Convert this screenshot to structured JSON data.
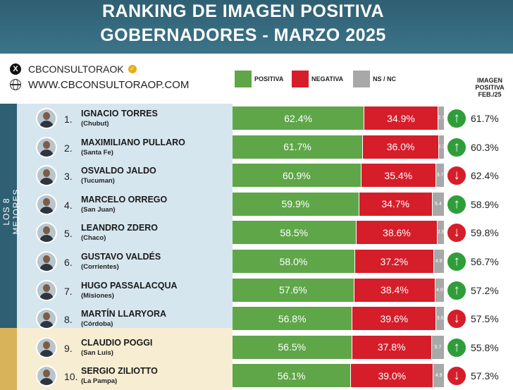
{
  "title": {
    "line1": "RANKING DE IMAGEN POSITIVA",
    "line2": "GOBERNADORES - MARZO 2025"
  },
  "brand": {
    "handle": "CBCONSULTORAOK",
    "website": "WWW.CBCONSULTORAOP.COM"
  },
  "legend": {
    "positive": "POSITIVA",
    "negative": "NEGATIVA",
    "nsnc": "NS / NC"
  },
  "feb_header": [
    "IMAGEN",
    "POSITIVA",
    "FEB./25"
  ],
  "side_label": "LOS 8 MEJORES",
  "colors": {
    "positive": "#5fa649",
    "negative": "#d51e2a",
    "nsnc": "#a8a8a8",
    "arrow_up": "#2f9e3a",
    "arrow_down": "#d51e2a",
    "header": "#2f5f72",
    "top_band": "#d6e6ef",
    "bottom_band": "#f6edd2"
  },
  "chart_data": {
    "type": "bar",
    "stacked": true,
    "orientation": "horizontal",
    "rows": [
      {
        "rank": "1.",
        "name": "IGNACIO TORRES",
        "province": "(Chubut)",
        "positiva": 62.4,
        "negativa": 34.9,
        "nsnc": 2.7,
        "trend": "up",
        "feb25": 61.7
      },
      {
        "rank": "2.",
        "name": "MAXIMILIANO PULLARO",
        "province": "(Santa Fe)",
        "positiva": 61.7,
        "negativa": 36.0,
        "nsnc": 2.3,
        "trend": "up",
        "feb25": 60.3
      },
      {
        "rank": "3.",
        "name": "OSVALDO JALDO",
        "province": "(Tucuman)",
        "positiva": 60.9,
        "negativa": 35.4,
        "nsnc": 3.7,
        "trend": "down",
        "feb25": 62.4
      },
      {
        "rank": "4.",
        "name": "MARCELO ORREGO",
        "province": "(San Juan)",
        "positiva": 59.9,
        "negativa": 34.7,
        "nsnc": 5.4,
        "trend": "up",
        "feb25": 58.9
      },
      {
        "rank": "5.",
        "name": "LEANDRO ZDERO",
        "province": "(Chaco)",
        "positiva": 58.5,
        "negativa": 38.6,
        "nsnc": 2.9,
        "trend": "down",
        "feb25": 59.8
      },
      {
        "rank": "6.",
        "name": "GUSTAVO VALDÉS",
        "province": "(Corrientes)",
        "positiva": 58.0,
        "negativa": 37.2,
        "nsnc": 4.8,
        "trend": "up",
        "feb25": 56.7
      },
      {
        "rank": "7.",
        "name": "HUGO PASSALACQUA",
        "province": "(Misiones)",
        "positiva": 57.6,
        "negativa": 38.4,
        "nsnc": 4.0,
        "trend": "up",
        "feb25": 57.2
      },
      {
        "rank": "8.",
        "name": "MARTÍN LLARYORA",
        "province": "(Córdoba)",
        "positiva": 56.8,
        "negativa": 39.6,
        "nsnc": 3.6,
        "trend": "down",
        "feb25": 57.5
      },
      {
        "rank": "9.",
        "name": "CLAUDIO POGGI",
        "province": "(San Luis)",
        "positiva": 56.5,
        "negativa": 37.8,
        "nsnc": 5.7,
        "trend": "up",
        "feb25": 55.8
      },
      {
        "rank": "10.",
        "name": "SERGIO ZILIOTTO",
        "province": "(La Pampa)",
        "positiva": 56.1,
        "negativa": 39.0,
        "nsnc": 4.9,
        "trend": "down",
        "feb25": 57.3
      }
    ]
  }
}
